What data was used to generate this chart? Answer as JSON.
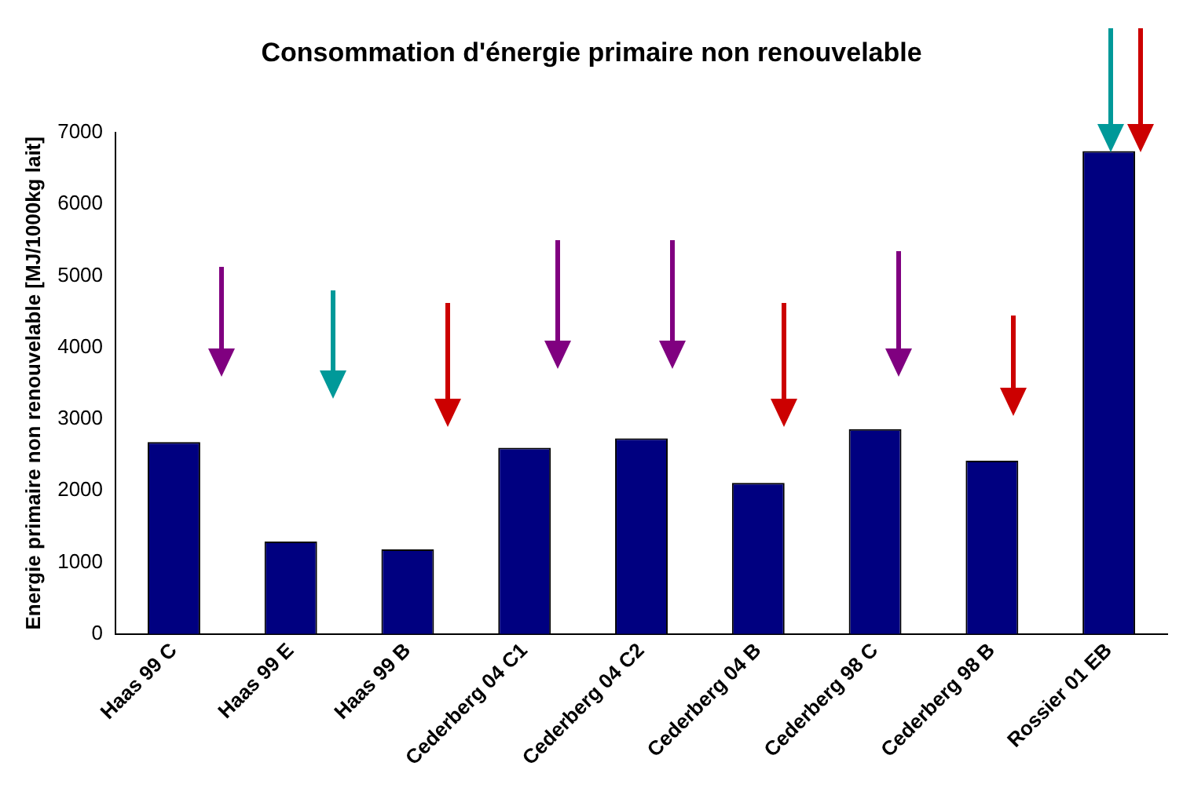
{
  "chart_data": {
    "type": "bar",
    "title": "Consommation d'énergie primaire non renouvelable",
    "ylabel": "Energie primaire non renouvelable [MJ/1000kg lait]",
    "categories": [
      "Haas 99 C",
      "Haas 99 E",
      "Haas 99 B",
      "Cederberg 04 C1",
      "Cederberg 04 C2",
      "Cederberg 04 B",
      "Cederberg 98 C",
      "Cederberg 98 B",
      "Rossier 01 EB"
    ],
    "values": [
      2680,
      1290,
      1180,
      2600,
      2730,
      2110,
      2860,
      2420,
      6740
    ],
    "color": "#000080",
    "ylim": [
      0,
      7000
    ],
    "yticks": [
      0,
      1000,
      2000,
      3000,
      4000,
      5000,
      6000,
      7000
    ],
    "grid": false,
    "legend": false
  }
}
